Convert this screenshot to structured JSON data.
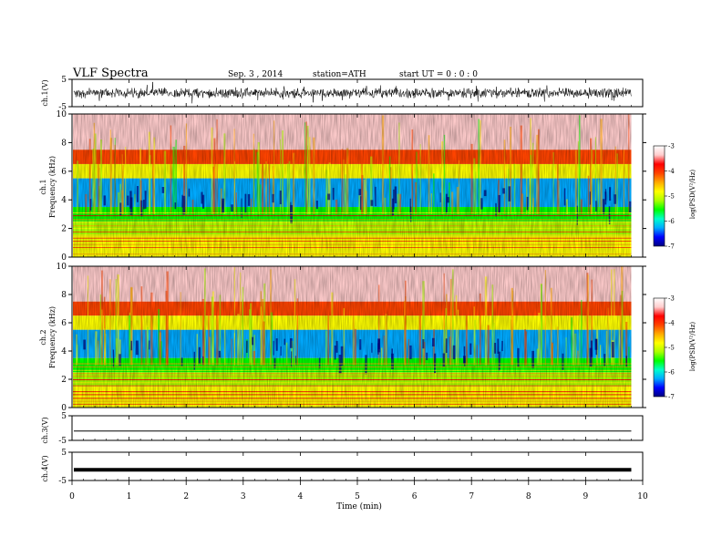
{
  "header": {
    "title": "VLF  Spectra",
    "date": "Sep. 3  , 2014",
    "station": "station=ATH",
    "start": "start  UT =    0 : 0  : 0"
  },
  "chart_data": {
    "type": "heatmap",
    "x_axis": {
      "label": "Time  (min)",
      "range": [
        0,
        10
      ],
      "ticks": [
        "0",
        "1",
        "2",
        "3",
        "4",
        "5",
        "6",
        "7",
        "8",
        "9",
        "10"
      ],
      "data_end": 9.8
    },
    "panels": [
      {
        "id": "ch1_waveform",
        "type": "line",
        "ylabel": "ch.1(V)",
        "ylim": [
          -5,
          5
        ],
        "yticks": [
          "5",
          "-5"
        ],
        "baseline": 0,
        "amplitude": 1.5
      },
      {
        "id": "ch1_spectrum",
        "type": "heatmap",
        "ylabel_top": "ch.1",
        "ylabel": "Frequency  (kHz)",
        "ylim": [
          0,
          10
        ],
        "yticks": [
          "0",
          "2",
          "4",
          "6",
          "8",
          "10"
        ]
      },
      {
        "id": "ch2_spectrum",
        "type": "heatmap",
        "ylabel_top": "ch.2",
        "ylabel": "Frequency  (kHz)",
        "ylim": [
          0,
          10
        ],
        "yticks": [
          "0",
          "2",
          "4",
          "6",
          "8",
          "10"
        ]
      },
      {
        "id": "ch3_waveform",
        "type": "line",
        "ylabel": "ch.3(V)",
        "ylim": [
          -5,
          5
        ],
        "yticks": [
          "5",
          "-5"
        ],
        "baseline": -1.2
      },
      {
        "id": "ch4_waveform",
        "type": "line",
        "ylabel": "ch.4(V)",
        "ylim": [
          -5,
          5
        ],
        "yticks": [
          "5",
          "-5"
        ],
        "baseline": -1.2
      }
    ],
    "spectrum_bands": [
      {
        "from_khz": 7.5,
        "to_khz": 10,
        "level": -3.2
      },
      {
        "from_khz": 6.5,
        "to_khz": 7.5,
        "level": -3.9
      },
      {
        "from_khz": 5.5,
        "to_khz": 6.5,
        "level": -4.6
      },
      {
        "from_khz": 3.5,
        "to_khz": 5.5,
        "level": -6.3
      },
      {
        "from_khz": 2.5,
        "to_khz": 3.5,
        "level": -5.6
      },
      {
        "from_khz": 1.5,
        "to_khz": 2.5,
        "level": -5.0
      },
      {
        "from_khz": 0,
        "to_khz": 1.5,
        "level": -4.5
      }
    ],
    "colorbar": {
      "label": "log(PSD(V²/Hz)",
      "range": [
        -7,
        -3
      ],
      "ticks": [
        "-3",
        "-4",
        "-5",
        "-6",
        "-7"
      ],
      "colors": [
        "#000080",
        "#0000ff",
        "#00aaff",
        "#00ffcc",
        "#00ff00",
        "#aaff00",
        "#ffff00",
        "#ffaa00",
        "#ff4400",
        "#ff0000",
        "#ffcccc",
        "#ffffff"
      ]
    }
  }
}
